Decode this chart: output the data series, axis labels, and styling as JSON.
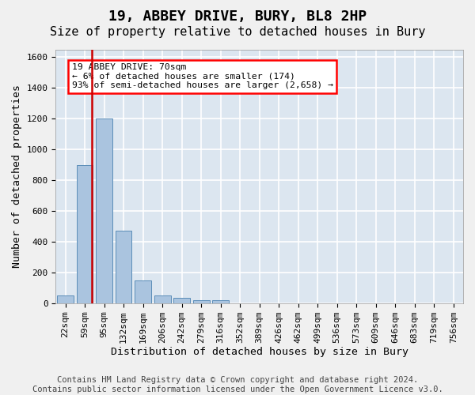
{
  "title": "19, ABBEY DRIVE, BURY, BL8 2HP",
  "subtitle": "Size of property relative to detached houses in Bury",
  "xlabel": "Distribution of detached houses by size in Bury",
  "ylabel": "Number of detached properties",
  "footer_line1": "Contains HM Land Registry data © Crown copyright and database right 2024.",
  "footer_line2": "Contains public sector information licensed under the Open Government Licence v3.0.",
  "bin_labels": [
    "22sqm",
    "59sqm",
    "95sqm",
    "132sqm",
    "169sqm",
    "206sqm",
    "242sqm",
    "279sqm",
    "316sqm",
    "352sqm",
    "389sqm",
    "426sqm",
    "462sqm",
    "499sqm",
    "536sqm",
    "573sqm",
    "609sqm",
    "646sqm",
    "683sqm",
    "719sqm",
    "756sqm"
  ],
  "bar_values": [
    50,
    900,
    1200,
    470,
    150,
    50,
    35,
    20,
    20,
    0,
    0,
    0,
    0,
    0,
    0,
    0,
    0,
    0,
    0,
    0,
    0
  ],
  "bar_color": "#aac4df",
  "bar_edge_color": "#5b8db8",
  "bar_width": 0.85,
  "ylim": [
    0,
    1650
  ],
  "yticks": [
    0,
    200,
    400,
    600,
    800,
    1000,
    1200,
    1400,
    1600
  ],
  "vline_x": 1.35,
  "vline_color": "#cc0000",
  "annotation_text": "19 ABBEY DRIVE: 70sqm\n← 6% of detached houses are smaller (174)\n93% of semi-detached houses are larger (2,658) →",
  "background_color": "#dce6f0",
  "grid_color": "#ffffff",
  "title_fontsize": 13,
  "subtitle_fontsize": 11,
  "axis_label_fontsize": 9.5,
  "tick_fontsize": 8,
  "footer_fontsize": 7.5
}
